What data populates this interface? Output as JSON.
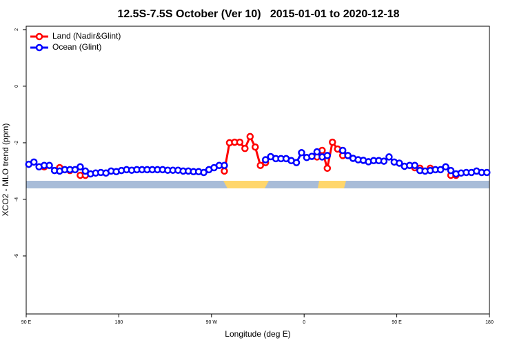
{
  "chart_data": {
    "type": "line",
    "title": "12.5S-7.5S October (Ver 10)   2015-01-01 to 2020-12-18",
    "x_label": "Longitude (deg E)",
    "y_label": "XCO2 - MLO trend (ppm)",
    "xlim": [
      90,
      540
    ],
    "ylim": [
      -8.05,
      2.12
    ],
    "xticks": [
      {
        "value": 90,
        "label": "90 E"
      },
      {
        "value": 180,
        "label": "180"
      },
      {
        "value": 270,
        "label": "90 W"
      },
      {
        "value": 360,
        "label": "0"
      },
      {
        "value": 450,
        "label": "90 E"
      },
      {
        "value": 540,
        "label": "180"
      }
    ],
    "yticks": [
      2,
      0,
      -2,
      -4,
      -6
    ],
    "legend": "top-left",
    "x": [
      92.5,
      97.5,
      102.5,
      107.5,
      112.5,
      117.5,
      122.5,
      127.5,
      132.5,
      137.5,
      142.5,
      147.5,
      152.5,
      157.5,
      162.5,
      167.5,
      172.5,
      177.5,
      182.5,
      187.5,
      192.5,
      197.5,
      202.5,
      207.5,
      212.5,
      217.5,
      222.5,
      227.5,
      232.5,
      237.5,
      242.5,
      247.5,
      252.5,
      257.5,
      262.5,
      267.5,
      272.5,
      277.5,
      282.5,
      287.5,
      292.5,
      297.5,
      302.5,
      307.5,
      312.5,
      317.5,
      322.5,
      327.5,
      332.5,
      337.5,
      342.5,
      347.5,
      352.5,
      357.5,
      362.5,
      367.5,
      372.5,
      377.5,
      382.5,
      387.5,
      392.5,
      397.5,
      402.5,
      407.5,
      412.5,
      417.5,
      422.5,
      427.5,
      432.5,
      437.5,
      442.5,
      447.5,
      452.5,
      457.5,
      462.5,
      467.5,
      472.5,
      477.5,
      482.5,
      487.5,
      492.5,
      497.5,
      502.5,
      507.5,
      512.5,
      517.5,
      522.5,
      527.5,
      532.5,
      537.5
    ],
    "series": [
      {
        "name": "Land (Nadir&Glint)",
        "color": "#ff0000",
        "values": [
          null,
          null,
          null,
          -2.85,
          null,
          null,
          -2.88,
          null,
          -2.98,
          null,
          -3.15,
          -3.15,
          null,
          null,
          null,
          null,
          null,
          null,
          null,
          null,
          null,
          null,
          null,
          null,
          null,
          null,
          null,
          null,
          null,
          null,
          null,
          null,
          null,
          null,
          null,
          null,
          null,
          null,
          -3.0,
          -2.0,
          -1.98,
          -1.98,
          -2.2,
          -1.78,
          -2.15,
          -2.8,
          -2.7,
          null,
          null,
          null,
          null,
          null,
          null,
          null,
          null,
          null,
          -2.5,
          -2.27,
          -2.9,
          -1.98,
          -2.22,
          -2.45,
          null,
          null,
          null,
          null,
          null,
          null,
          null,
          null,
          null,
          null,
          null,
          null,
          null,
          -2.88,
          -2.9,
          null,
          -2.9,
          null,
          null,
          null,
          -3.15,
          -3.15,
          null,
          null,
          null,
          null,
          null,
          null
        ]
      },
      {
        "name": "Ocean (Glint)",
        "color": "#0000ff",
        "values": [
          -2.76,
          -2.68,
          -2.85,
          -2.8,
          -2.8,
          -2.98,
          -3.0,
          -2.95,
          -2.95,
          -2.95,
          -2.85,
          -3.0,
          -3.1,
          -3.07,
          -3.05,
          -3.07,
          -3.0,
          -3.02,
          -2.98,
          -2.95,
          -2.97,
          -2.95,
          -2.95,
          -2.95,
          -2.95,
          -2.95,
          -2.95,
          -2.97,
          -2.97,
          -2.97,
          -3.0,
          -3.0,
          -3.02,
          -3.02,
          -3.05,
          -2.95,
          -2.88,
          -2.8,
          -2.8,
          null,
          null,
          null,
          null,
          null,
          null,
          null,
          -2.6,
          -2.49,
          -2.56,
          -2.56,
          -2.56,
          -2.63,
          -2.7,
          -2.35,
          -2.52,
          -2.48,
          -2.32,
          -2.5,
          -2.45,
          null,
          null,
          -2.27,
          -2.45,
          -2.55,
          -2.6,
          -2.62,
          -2.67,
          -2.63,
          -2.63,
          -2.65,
          -2.5,
          -2.68,
          -2.72,
          -2.83,
          -2.8,
          -2.8,
          -2.98,
          -3.0,
          -2.98,
          -2.95,
          -2.95,
          -2.85,
          -2.98,
          -3.1,
          -3.07,
          -3.05,
          -3.05,
          -3.0,
          -3.05,
          -3.05
        ]
      }
    ]
  }
}
